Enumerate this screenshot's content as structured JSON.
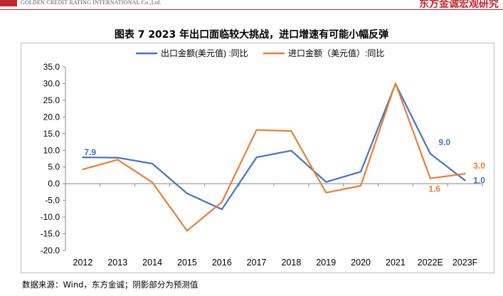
{
  "header": {
    "company_en": "GOLDEN CREDIT RATING INTERNATIONAL Co.,Ltd.",
    "company_cn": "东方金诚宏观研究"
  },
  "figure_title": "图表 7   2023 年出口面临较大挑战，进口增速有可能小幅反弹",
  "source_note": "数据来源：Wind，东方金诚；阴影部分为预测值",
  "colors": {
    "export": "#4472c4",
    "import": "#ed7d31",
    "axis": "#888888",
    "grid": "#d9d9d9"
  },
  "chart_data": {
    "type": "line",
    "title": "图表 7   2023 年出口面临较大挑战，进口增速有可能小幅反弹",
    "xlabel": "",
    "ylabel": "",
    "categories": [
      "2012",
      "2013",
      "2014",
      "2015",
      "2016",
      "2017",
      "2018",
      "2019",
      "2020",
      "2021",
      "2022E",
      "2023F"
    ],
    "ylim": [
      -20,
      35
    ],
    "ytick_step": 5,
    "y_tick_labels": [
      "35.0",
      "30.0",
      "25.0",
      "20.0",
      "15.0",
      "10.0",
      "5.0",
      "0.0",
      "-5.0",
      "-10.0",
      "-15.0",
      "-20.0"
    ],
    "grid": false,
    "legend_position": "top",
    "series": [
      {
        "name": "出口金额(美元值) :同比",
        "color": "#4472c4",
        "values": [
          7.9,
          7.8,
          6.0,
          -2.9,
          -7.7,
          7.9,
          9.9,
          0.5,
          3.6,
          29.9,
          9.0,
          1.0
        ]
      },
      {
        "name": "进口金额（美元值）:同比",
        "color": "#ed7d31",
        "values": [
          4.3,
          7.2,
          0.4,
          -14.1,
          -5.5,
          16.1,
          15.8,
          -2.7,
          -0.6,
          30.1,
          1.6,
          3.0
        ]
      }
    ],
    "annotations": [
      {
        "text": "7.9",
        "series": 0,
        "index": 0,
        "color": "#4472c4"
      },
      {
        "text": "9.0",
        "series": 0,
        "index": 10,
        "color": "#4472c4"
      },
      {
        "text": "1.0",
        "series": 0,
        "index": 11,
        "color": "#4472c4"
      },
      {
        "text": "1.6",
        "series": 1,
        "index": 10,
        "color": "#ed7d31"
      },
      {
        "text": "3.0",
        "series": 1,
        "index": 11,
        "color": "#ed7d31"
      }
    ]
  }
}
